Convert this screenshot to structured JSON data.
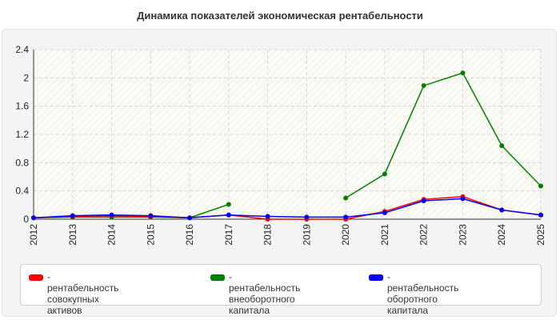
{
  "chart_data": {
    "type": "line",
    "title": "Динамика показателей экономическая рентабельности",
    "categories": [
      "2012",
      "2013",
      "2014",
      "2015",
      "2016",
      "2017",
      "2018",
      "2019",
      "2020",
      "2021",
      "2022",
      "2023",
      "2024",
      "2025"
    ],
    "ylim": [
      0,
      2.4
    ],
    "yticks": [
      "0",
      "0.4",
      "0.8",
      "1.2",
      "1.6",
      "2",
      "2.4"
    ],
    "grid": true,
    "legend_position": "bottom",
    "series": [
      {
        "name": "- рентабельность совокупных активов",
        "color": "#ff0000",
        "values": [
          0.02,
          0.04,
          0.05,
          0.04,
          0.02,
          0.06,
          0.0,
          0.0,
          0.0,
          0.11,
          0.28,
          0.32,
          0.13,
          0.06
        ]
      },
      {
        "name": "- рентабельность внеоборотного капитала",
        "color": "#008000",
        "values": [
          0.02,
          0.03,
          0.03,
          0.03,
          0.02,
          0.21,
          null,
          null,
          0.3,
          0.64,
          1.89,
          2.07,
          1.04,
          0.47
        ]
      },
      {
        "name": "- рентабельность оборотного капитала",
        "color": "#0000ff",
        "values": [
          0.02,
          0.05,
          0.06,
          0.05,
          0.02,
          0.06,
          0.04,
          0.03,
          0.03,
          0.09,
          0.26,
          0.29,
          0.13,
          0.06
        ]
      }
    ]
  },
  "legend": {
    "items": [
      {
        "label_line1": "- рентабельность совокупных",
        "label_line2": "активов",
        "icon": "red-swatch"
      },
      {
        "label_line1": "- рентабельность",
        "label_line2": "внеоборотного капитала",
        "icon": "green-swatch"
      },
      {
        "label_line1": "- рентабельность оборотного",
        "label_line2": "капитала",
        "icon": "blue-swatch"
      }
    ]
  }
}
